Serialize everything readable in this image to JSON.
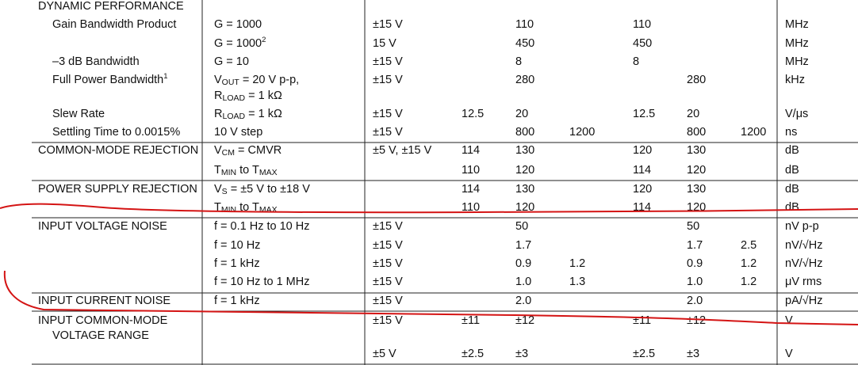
{
  "table": {
    "rows": [
      [
        "DYNAMIC PERFORMANCE",
        null,
        null,
        null,
        null,
        null,
        null,
        null,
        null,
        null
      ],
      [
        "Gain Bandwidth Product",
        "G = 1000",
        "±15 V",
        null,
        "110",
        null,
        "110",
        null,
        null,
        "MHz"
      ],
      [
        null,
        [
          "G = 1000",
          {
            "sup": "2"
          }
        ],
        "15 V",
        null,
        "450",
        null,
        "450",
        null,
        null,
        "MHz"
      ],
      [
        "–3 dB Bandwidth",
        "G = 10",
        "±15 V",
        null,
        "8",
        null,
        "8",
        null,
        null,
        "MHz"
      ],
      [
        [
          "Full Power Bandwidth",
          {
            "sup": "1"
          }
        ],
        [
          "V",
          {
            "sub": "OUT"
          },
          " = 20 V p-p,"
        ],
        "±15 V",
        null,
        "280",
        null,
        null,
        "280",
        null,
        "kHz"
      ],
      [
        null,
        [
          "R",
          {
            "sub": "LOAD"
          },
          " = 1 kΩ"
        ],
        null,
        null,
        null,
        null,
        null,
        null,
        null,
        null
      ],
      [
        "Slew Rate",
        [
          "R",
          {
            "sub": "LOAD"
          },
          " = 1 kΩ"
        ],
        "±15 V",
        "12.5",
        "20",
        null,
        "12.5",
        "20",
        null,
        "V/μs"
      ],
      [
        "Settling Time to 0.0015%",
        "10 V step",
        "±15 V",
        null,
        "800",
        "1200",
        null,
        "800",
        "1200",
        "ns"
      ],
      [
        "COMMON-MODE REJECTION",
        [
          "V",
          {
            "sub": "CM"
          },
          " = CMVR"
        ],
        "±5 V, ±15 V",
        "114",
        "130",
        null,
        "120",
        "130",
        null,
        "dB"
      ],
      [
        null,
        [
          "T",
          {
            "sub": "MIN"
          },
          " to T",
          {
            "sub": "MAX"
          }
        ],
        null,
        "110",
        "120",
        null,
        "114",
        "120",
        null,
        "dB"
      ],
      [
        "POWER SUPPLY REJECTION",
        [
          "V",
          {
            "sub": "S"
          },
          " = ±5 V to ±18 V"
        ],
        null,
        "114",
        "130",
        null,
        "120",
        "130",
        null,
        "dB"
      ],
      [
        null,
        [
          "T",
          {
            "sub": "MIN"
          },
          " to T",
          {
            "sub": "MAX"
          }
        ],
        null,
        "110",
        "120",
        null,
        "114",
        "120",
        null,
        "dB"
      ],
      [
        "INPUT VOLTAGE NOISE",
        "f = 0.1 Hz to 10 Hz",
        "±15 V",
        null,
        "50",
        null,
        null,
        "50",
        null,
        "nV p-p"
      ],
      [
        null,
        "f = 10 Hz",
        "±15 V",
        null,
        "1.7",
        null,
        null,
        "1.7",
        "2.5",
        "nV/√Hz"
      ],
      [
        null,
        "f = 1 kHz",
        "±15 V",
        null,
        "0.9",
        "1.2",
        null,
        "0.9",
        "1.2",
        "nV/√Hz"
      ],
      [
        null,
        "f = 10 Hz to 1 MHz",
        "±15 V",
        null,
        "1.0",
        "1.3",
        null,
        "1.0",
        "1.2",
        "μV rms"
      ],
      [
        "INPUT CURRENT NOISE",
        "f = 1 kHz",
        "±15 V",
        null,
        "2.0",
        null,
        null,
        "2.0",
        null,
        "pA/√Hz"
      ],
      [
        "INPUT COMMON-MODE",
        null,
        "±15 V",
        "±11",
        "±12",
        null,
        "±11",
        "±12",
        null,
        "V"
      ],
      [
        "VOLTAGE RANGE",
        null,
        null,
        null,
        null,
        null,
        null,
        null,
        null,
        null
      ],
      [
        null,
        null,
        "±5 V",
        "±2.5",
        "±3",
        null,
        "±2.5",
        "±3",
        null,
        "V"
      ]
    ]
  }
}
